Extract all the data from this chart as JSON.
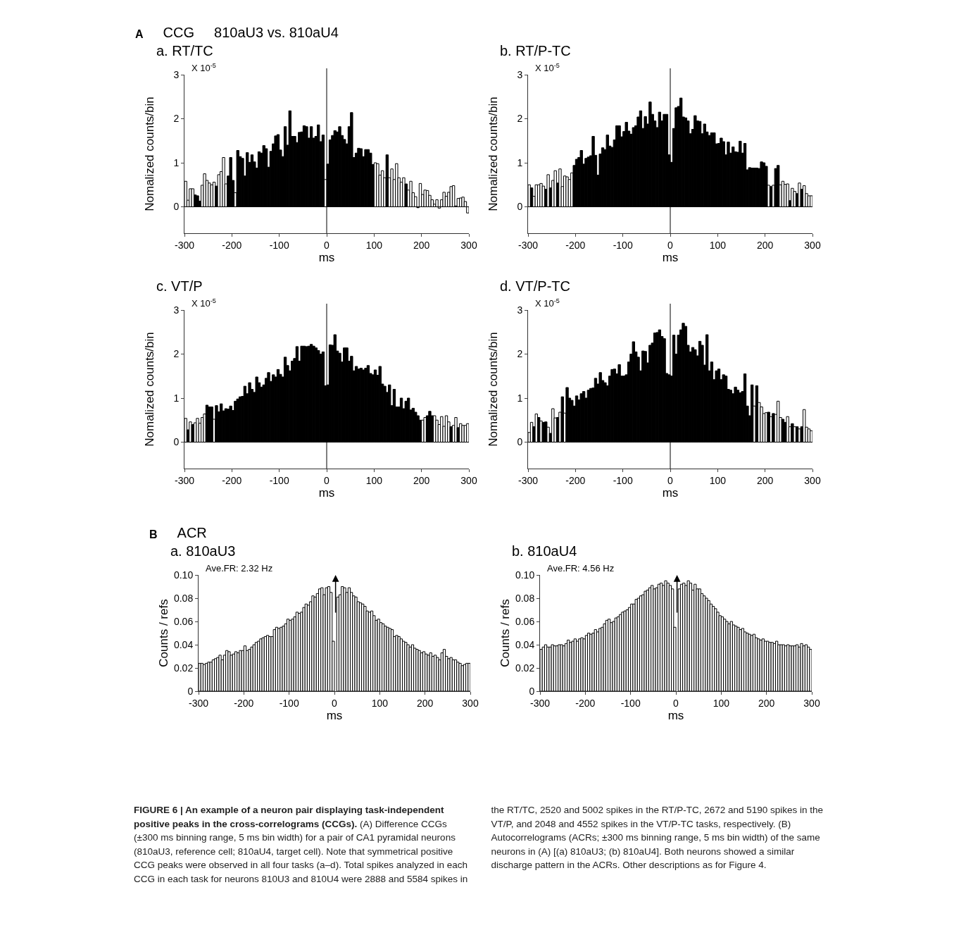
{
  "chart_data": [
    {
      "type": "histogram",
      "title": "a. RT/TC",
      "xlabel": "ms",
      "ylabel": "Nomalized counts/bin",
      "annotations": [
        "A",
        "CCG",
        "810aU3 vs. 810aU4",
        "X 10$^{-5}$"
      ],
      "bins": [
        -300,
        -295,
        -290,
        -285,
        -280,
        -275,
        -270,
        -265,
        -260,
        -255,
        -250,
        -245,
        -240,
        -235,
        -230,
        -225,
        -220,
        -215,
        -210,
        -205,
        -200,
        -195,
        -190,
        -185,
        -180,
        -175,
        -170,
        -165,
        -160,
        -155,
        -150,
        -145,
        -140,
        -135,
        -130,
        -125,
        -120,
        -115,
        -110,
        -105,
        -100,
        -95,
        -90,
        -85,
        -80,
        -75,
        -70,
        -65,
        -60,
        -55,
        -50,
        -45,
        -40,
        -35,
        -30,
        -25,
        -20,
        -15,
        -10,
        -5,
        0,
        5,
        10,
        15,
        20,
        25,
        30,
        35,
        40,
        45,
        50,
        55,
        60,
        65,
        70,
        75,
        80,
        85,
        90,
        95,
        100,
        105,
        110,
        115,
        120,
        125,
        130,
        135,
        140,
        145,
        150,
        155,
        160,
        165,
        170,
        175,
        180,
        185,
        190,
        195,
        200,
        205,
        210,
        215,
        220,
        225,
        230,
        235,
        240,
        245,
        250,
        255,
        260,
        265,
        270,
        275,
        280,
        285,
        290,
        295,
        300
      ],
      "values": [
        0.58,
        0.15,
        0.41,
        0.41,
        0.27,
        0.25,
        0.13,
        0.49,
        0.75,
        0.6,
        0.54,
        0.5,
        0.56,
        0.47,
        0.73,
        0.8,
        1.12,
        0.52,
        0.7,
        1.12,
        0.6,
        0.32,
        1.28,
        1.14,
        1.1,
        0.7,
        1.23,
        1.01,
        1.18,
        1.02,
        0.88,
        1.25,
        1.22,
        1.39,
        1.32,
        0.9,
        1.26,
        1.43,
        1.61,
        1.64,
        1.29,
        1.14,
        1.82,
        1.4,
        2.18,
        1.6,
        1.6,
        1.46,
        1.69,
        1.7,
        1.84,
        1.82,
        1.56,
        1.82,
        1.56,
        1.6,
        1.86,
        1.48,
        1.63,
        0.62,
        0.97,
        1.52,
        1.62,
        1.73,
        1.7,
        1.82,
        1.62,
        1.53,
        1.43,
        1.82,
        2.14,
        1.12,
        1.22,
        1.33,
        1.32,
        1.14,
        1.3,
        1.3,
        1.22,
        0.96,
        1.0,
        0.98,
        0.72,
        0.82,
        0.66,
        1.18,
        0.66,
        0.86,
        0.62,
        0.98,
        0.66,
        0.56,
        0.66,
        0.52,
        0.38,
        0.58,
        0.32,
        0.23,
        -0.02,
        0.53,
        0.28,
        0.38,
        0.37,
        0.26,
        0.16,
        0.06,
        0.16,
        -0.03,
        0.16,
        0.33,
        0.24,
        0.33,
        0.46,
        0.48,
        0.02,
        0.19,
        0.2,
        0.22,
        0.12,
        -0.14
      ],
      "colors": [
        "#ffffff",
        "#ffffff",
        "#ffffff",
        "#ffffff",
        "#000000",
        "#000000",
        "#000000",
        "#ffffff",
        "#ffffff",
        "#ffffff",
        "#ffffff",
        "#ffffff",
        "#ffffff",
        "#000000",
        "#ffffff",
        "#ffffff",
        "#ffffff",
        "#ffffff",
        "#000000",
        "#000000",
        "#000000",
        "#ffffff",
        "#000000",
        "#000000",
        "#000000",
        "#000000",
        "#000000",
        "#000000",
        "#000000",
        "#000000",
        "#000000",
        "#000000",
        "#000000",
        "#000000",
        "#000000",
        "#000000",
        "#000000",
        "#000000",
        "#000000",
        "#000000",
        "#000000",
        "#000000",
        "#000000",
        "#000000",
        "#000000",
        "#000000",
        "#000000",
        "#000000",
        "#000000",
        "#000000",
        "#000000",
        "#000000",
        "#000000",
        "#000000",
        "#000000",
        "#000000",
        "#000000",
        "#000000",
        "#000000",
        "#ffffff",
        "#000000",
        "#000000",
        "#000000",
        "#000000",
        "#000000",
        "#000000",
        "#000000",
        "#000000",
        "#000000",
        "#000000",
        "#000000",
        "#000000",
        "#000000",
        "#000000",
        "#000000",
        "#000000",
        "#000000",
        "#000000",
        "#000000",
        "#000000",
        "#ffffff",
        "#ffffff",
        "#ffffff",
        "#ffffff",
        "#ffffff",
        "#000000",
        "#ffffff",
        "#ffffff",
        "#ffffff",
        "#ffffff",
        "#ffffff",
        "#ffffff",
        "#ffffff",
        "#000000",
        "#ffffff",
        "#ffffff",
        "#ffffff",
        "#ffffff",
        "#000000",
        "#ffffff",
        "#ffffff",
        "#ffffff",
        "#ffffff",
        "#ffffff",
        "#ffffff",
        "#ffffff",
        "#ffffff",
        "#ffffff",
        "#ffffff",
        "#ffffff",
        "#ffffff",
        "#ffffff",
        "#ffffff",
        "#ffffff",
        "#ffffff",
        "#ffffff",
        "#ffffff",
        "#ffffff",
        "#ffffff",
        "#ffffff"
      ],
      "xlim": [
        -300,
        300
      ],
      "ylim": [
        -0.6,
        3
      ],
      "xticks": [
        -300,
        -200,
        -100,
        0,
        100,
        200,
        300
      ],
      "yticks": [
        0,
        1,
        2,
        3
      ],
      "ref_lines": [
        {
          "axis": "x",
          "value": 0
        }
      ]
    },
    {
      "type": "histogram",
      "title": "b. RT/P-TC",
      "xlabel": "ms",
      "ylabel": "Nomalized counts/bin",
      "annotations": [
        "X 10$^{-5}$"
      ],
      "bins": [
        -300,
        -295,
        -290,
        -285,
        -280,
        -275,
        -270,
        -265,
        -260,
        -255,
        -250,
        -245,
        -240,
        -235,
        -230,
        -225,
        -220,
        -215,
        -210,
        -205,
        -200,
        -195,
        -190,
        -185,
        -180,
        -175,
        -170,
        -165,
        -160,
        -155,
        -150,
        -145,
        -140,
        -135,
        -130,
        -125,
        -120,
        -115,
        -110,
        -105,
        -100,
        -95,
        -90,
        -85,
        -80,
        -75,
        -70,
        -65,
        -60,
        -55,
        -50,
        -45,
        -40,
        -35,
        -30,
        -25,
        -20,
        -15,
        -10,
        -5,
        0,
        5,
        10,
        15,
        20,
        25,
        30,
        35,
        40,
        45,
        50,
        55,
        60,
        65,
        70,
        75,
        80,
        85,
        90,
        95,
        100,
        105,
        110,
        115,
        120,
        125,
        130,
        135,
        140,
        145,
        150,
        155,
        160,
        165,
        170,
        175,
        180,
        185,
        190,
        195,
        200,
        205,
        210,
        215,
        220,
        225,
        230,
        235,
        240,
        245,
        250,
        255,
        260,
        265,
        270,
        275,
        280,
        285,
        290,
        295,
        300
      ],
      "values": [
        0.5,
        0.43,
        0.24,
        0.5,
        0.5,
        0.53,
        0.47,
        0.4,
        0.73,
        0.43,
        0.6,
        0.82,
        0.54,
        0.86,
        0.46,
        0.7,
        0.68,
        0.62,
        0.77,
        0.94,
        1.08,
        1.12,
        1.28,
        0.97,
        1.1,
        1.13,
        1.16,
        1.6,
        1.17,
        0.72,
        1.2,
        1.34,
        1.3,
        1.63,
        1.38,
        1.35,
        1.52,
        1.84,
        1.84,
        1.59,
        1.71,
        1.92,
        1.72,
        1.65,
        1.8,
        1.84,
        2.04,
        2.18,
        1.78,
        2.05,
        1.88,
        2.38,
        2.1,
        1.95,
        1.8,
        2.15,
        1.95,
        2.1,
        2.1,
        1.18,
        1.01,
        1.78,
        2.25,
        2.28,
        2.47,
        2.04,
        2.02,
        1.95,
        1.66,
        1.76,
        2.07,
        1.95,
        1.94,
        1.66,
        1.88,
        1.7,
        1.62,
        1.68,
        1.68,
        1.43,
        1.44,
        1.56,
        1.48,
        1.18,
        1.47,
        1.22,
        1.36,
        1.25,
        1.24,
        1.49,
        1.22,
        1.44,
        0.84,
        0.89,
        0.88,
        0.88,
        0.88,
        0.87,
        1.02,
        1.0,
        0.92,
        0.49,
        0.46,
        0.49,
        0.87,
        0.94,
        0.5,
        0.58,
        0.51,
        0.52,
        0.14,
        0.42,
        0.35,
        0.3,
        0.54,
        0.4,
        0.48,
        0.3,
        0.25,
        0.25
      ],
      "colors": [
        "#ffffff",
        "#000000",
        "#ffffff",
        "#ffffff",
        "#ffffff",
        "#ffffff",
        "#ffffff",
        "#000000",
        "#ffffff",
        "#000000",
        "#ffffff",
        "#ffffff",
        "#000000",
        "#ffffff",
        "#ffffff",
        "#ffffff",
        "#ffffff",
        "#ffffff",
        "#ffffff",
        "#000000",
        "#000000",
        "#000000",
        "#000000",
        "#000000",
        "#000000",
        "#000000",
        "#000000",
        "#000000",
        "#000000",
        "#000000",
        "#000000",
        "#000000",
        "#000000",
        "#000000",
        "#000000",
        "#000000",
        "#000000",
        "#000000",
        "#000000",
        "#000000",
        "#000000",
        "#000000",
        "#000000",
        "#000000",
        "#000000",
        "#000000",
        "#000000",
        "#000000",
        "#000000",
        "#000000",
        "#000000",
        "#000000",
        "#000000",
        "#000000",
        "#000000",
        "#000000",
        "#000000",
        "#000000",
        "#000000",
        "#000000",
        "#000000",
        "#000000",
        "#000000",
        "#000000",
        "#000000",
        "#000000",
        "#000000",
        "#000000",
        "#000000",
        "#000000",
        "#000000",
        "#000000",
        "#000000",
        "#000000",
        "#000000",
        "#000000",
        "#000000",
        "#000000",
        "#000000",
        "#000000",
        "#000000",
        "#000000",
        "#000000",
        "#000000",
        "#000000",
        "#000000",
        "#000000",
        "#000000",
        "#000000",
        "#000000",
        "#000000",
        "#000000",
        "#000000",
        "#000000",
        "#000000",
        "#000000",
        "#000000",
        "#000000",
        "#000000",
        "#000000",
        "#000000",
        "#ffffff",
        "#000000",
        "#ffffff",
        "#000000",
        "#000000",
        "#ffffff",
        "#ffffff",
        "#ffffff",
        "#ffffff",
        "#000000",
        "#ffffff",
        "#ffffff",
        "#000000",
        "#ffffff",
        "#000000",
        "#ffffff",
        "#ffffff",
        "#ffffff",
        "#ffffff"
      ],
      "xlim": [
        -300,
        300
      ],
      "ylim": [
        -0.6,
        3
      ],
      "xticks": [
        -300,
        -200,
        -100,
        0,
        100,
        200,
        300
      ],
      "yticks": [
        0,
        1,
        2,
        3
      ],
      "ref_lines": [
        {
          "axis": "x",
          "value": 0
        }
      ]
    },
    {
      "type": "histogram",
      "title": "c. VT/P",
      "xlabel": "ms",
      "ylabel": "Nomalized counts/bin",
      "annotations": [
        "X 10$^{-5}$"
      ],
      "bins": [
        -300,
        -295,
        -290,
        -285,
        -280,
        -275,
        -270,
        -265,
        -260,
        -255,
        -250,
        -245,
        -240,
        -235,
        -230,
        -225,
        -220,
        -215,
        -210,
        -205,
        -200,
        -195,
        -190,
        -185,
        -180,
        -175,
        -170,
        -165,
        -160,
        -155,
        -150,
        -145,
        -140,
        -135,
        -130,
        -125,
        -120,
        -115,
        -110,
        -105,
        -100,
        -95,
        -90,
        -85,
        -80,
        -75,
        -70,
        -65,
        -60,
        -55,
        -50,
        -45,
        -40,
        -35,
        -30,
        -25,
        -20,
        -15,
        -10,
        -5,
        0,
        5,
        10,
        15,
        20,
        25,
        30,
        35,
        40,
        45,
        50,
        55,
        60,
        65,
        70,
        75,
        80,
        85,
        90,
        95,
        100,
        105,
        110,
        115,
        120,
        125,
        130,
        135,
        140,
        145,
        150,
        155,
        160,
        165,
        170,
        175,
        180,
        185,
        190,
        195,
        200,
        205,
        210,
        215,
        220,
        225,
        230,
        235,
        240,
        245,
        250,
        255,
        260,
        265,
        270,
        275,
        280,
        285,
        290,
        295,
        300
      ],
      "values": [
        0.54,
        0.28,
        0.46,
        0.4,
        0.44,
        0.54,
        0.43,
        0.56,
        0.64,
        0.84,
        0.8,
        0.8,
        0.52,
        0.83,
        0.69,
        0.87,
        0.71,
        0.76,
        0.75,
        0.82,
        0.72,
        0.93,
        0.98,
        1.03,
        1.04,
        1.27,
        1.1,
        1.35,
        1.2,
        1.13,
        1.48,
        1.35,
        1.25,
        1.3,
        1.45,
        1.58,
        1.38,
        1.53,
        1.48,
        1.65,
        1.54,
        1.48,
        1.93,
        1.74,
        1.62,
        1.84,
        1.9,
        2.17,
        1.84,
        2.18,
        2.18,
        2.17,
        2.18,
        2.22,
        2.18,
        2.14,
        2.08,
        2.0,
        2.05,
        1.28,
        1.3,
        2.21,
        2.2,
        2.44,
        2.07,
        2.02,
        1.82,
        2.14,
        2.14,
        1.84,
        1.95,
        1.62,
        1.72,
        1.66,
        1.68,
        1.64,
        1.68,
        1.74,
        1.56,
        1.53,
        1.64,
        1.52,
        1.72,
        1.32,
        1.27,
        1.13,
        1.3,
        0.83,
        1.2,
        0.8,
        0.8,
        1.0,
        0.76,
        0.93,
        1.0,
        0.73,
        0.77,
        0.68,
        0.6,
        0.5,
        0.5,
        0.56,
        0.6,
        0.7,
        0.6,
        0.6,
        0.5,
        0.4,
        0.58,
        0.36,
        0.6,
        0.46,
        0.35,
        0.38,
        0.56,
        0.33,
        0.42,
        0.38,
        0.38,
        0.42
      ],
      "colors": [
        "#ffffff",
        "#000000",
        "#ffffff",
        "#000000",
        "#ffffff",
        "#ffffff",
        "#ffffff",
        "#ffffff",
        "#ffffff",
        "#000000",
        "#000000",
        "#000000",
        "#ffffff",
        "#000000",
        "#000000",
        "#000000",
        "#000000",
        "#000000",
        "#000000",
        "#000000",
        "#000000",
        "#000000",
        "#000000",
        "#000000",
        "#000000",
        "#000000",
        "#000000",
        "#000000",
        "#000000",
        "#000000",
        "#000000",
        "#000000",
        "#000000",
        "#000000",
        "#000000",
        "#000000",
        "#000000",
        "#000000",
        "#000000",
        "#000000",
        "#000000",
        "#000000",
        "#000000",
        "#000000",
        "#000000",
        "#000000",
        "#000000",
        "#000000",
        "#000000",
        "#000000",
        "#000000",
        "#000000",
        "#000000",
        "#000000",
        "#000000",
        "#000000",
        "#000000",
        "#000000",
        "#000000",
        "#000000",
        "#000000",
        "#000000",
        "#000000",
        "#000000",
        "#000000",
        "#000000",
        "#000000",
        "#000000",
        "#000000",
        "#000000",
        "#000000",
        "#000000",
        "#000000",
        "#000000",
        "#000000",
        "#000000",
        "#000000",
        "#000000",
        "#000000",
        "#000000",
        "#000000",
        "#000000",
        "#000000",
        "#000000",
        "#000000",
        "#000000",
        "#000000",
        "#000000",
        "#000000",
        "#000000",
        "#000000",
        "#000000",
        "#000000",
        "#000000",
        "#000000",
        "#000000",
        "#000000",
        "#000000",
        "#000000",
        "#000000",
        "#ffffff",
        "#ffffff",
        "#000000",
        "#000000",
        "#000000",
        "#ffffff",
        "#ffffff",
        "#ffffff",
        "#ffffff",
        "#ffffff",
        "#ffffff",
        "#ffffff",
        "#000000",
        "#ffffff",
        "#ffffff",
        "#000000",
        "#ffffff",
        "#ffffff",
        "#ffffff",
        "#ffffff"
      ],
      "xlim": [
        -300,
        300
      ],
      "ylim": [
        -0.6,
        3
      ],
      "xticks": [
        -300,
        -200,
        -100,
        0,
        100,
        200,
        300
      ],
      "yticks": [
        0,
        1,
        2,
        3
      ],
      "ref_lines": [
        {
          "axis": "x",
          "value": 0
        }
      ]
    },
    {
      "type": "histogram",
      "title": "d. VT/P-TC",
      "xlabel": "ms",
      "ylabel": "Nomalized counts/bin",
      "annotations": [
        "X 10$^{-5}$"
      ],
      "bins": [
        -300,
        -295,
        -290,
        -285,
        -280,
        -275,
        -270,
        -265,
        -260,
        -255,
        -250,
        -245,
        -240,
        -235,
        -230,
        -225,
        -220,
        -215,
        -210,
        -205,
        -200,
        -195,
        -190,
        -185,
        -180,
        -175,
        -170,
        -165,
        -160,
        -155,
        -150,
        -145,
        -140,
        -135,
        -130,
        -125,
        -120,
        -115,
        -110,
        -105,
        -100,
        -95,
        -90,
        -85,
        -80,
        -75,
        -70,
        -65,
        -60,
        -55,
        -50,
        -45,
        -40,
        -35,
        -30,
        -25,
        -20,
        -15,
        -10,
        -5,
        0,
        5,
        10,
        15,
        20,
        25,
        30,
        35,
        40,
        45,
        50,
        55,
        60,
        65,
        70,
        75,
        80,
        85,
        90,
        95,
        100,
        105,
        110,
        115,
        120,
        125,
        130,
        135,
        140,
        145,
        150,
        155,
        160,
        165,
        170,
        175,
        180,
        185,
        190,
        195,
        200,
        205,
        210,
        215,
        220,
        225,
        230,
        235,
        240,
        245,
        250,
        255,
        260,
        265,
        270,
        275,
        280,
        285,
        290,
        295,
        300
      ],
      "values": [
        0.22,
        0.45,
        0.35,
        0.64,
        0.56,
        0.48,
        0.45,
        0.46,
        0.34,
        0.2,
        0.76,
        0.55,
        0.56,
        0.68,
        1.03,
        0.66,
        1.24,
        1.0,
        0.95,
        0.82,
        1.05,
        0.96,
        1.1,
        1.15,
        1.0,
        1.18,
        1.22,
        1.23,
        1.45,
        1.32,
        1.58,
        1.4,
        1.35,
        1.28,
        1.5,
        1.65,
        1.66,
        1.55,
        1.76,
        1.5,
        1.5,
        1.53,
        1.82,
        2.0,
        2.28,
        2.05,
        1.93,
        1.62,
        2.07,
        2.06,
        1.8,
        2.2,
        2.25,
        2.48,
        2.49,
        2.55,
        2.4,
        2.35,
        1.56,
        1.53,
        1.5,
        2.43,
        2.0,
        2.43,
        2.55,
        2.7,
        2.63,
        2.2,
        2.05,
        2.15,
        2.1,
        1.96,
        2.29,
        2.2,
        1.75,
        2.44,
        1.62,
        1.82,
        1.42,
        1.62,
        1.66,
        1.42,
        1.53,
        1.5,
        1.2,
        1.18,
        1.1,
        1.25,
        1.18,
        1.12,
        1.15,
        1.55,
        0.82,
        0.6,
        1.3,
        0.82,
        1.28,
        0.9,
        0.8,
        0.65,
        0.67,
        0.68,
        0.58,
        0.65,
        0.63,
        0.93,
        0.56,
        0.52,
        0.45,
        0.58,
        0.35,
        0.42,
        0.35,
        0.35,
        0.3,
        0.35,
        0.74,
        0.34,
        0.3,
        0.26
      ],
      "colors": [
        "#ffffff",
        "#ffffff",
        "#000000",
        "#ffffff",
        "#000000",
        "#ffffff",
        "#000000",
        "#000000",
        "#ffffff",
        "#000000",
        "#ffffff",
        "#ffffff",
        "#000000",
        "#ffffff",
        "#000000",
        "#ffffff",
        "#000000",
        "#000000",
        "#000000",
        "#000000",
        "#000000",
        "#000000",
        "#000000",
        "#000000",
        "#000000",
        "#000000",
        "#000000",
        "#000000",
        "#000000",
        "#000000",
        "#000000",
        "#000000",
        "#000000",
        "#000000",
        "#000000",
        "#000000",
        "#000000",
        "#000000",
        "#000000",
        "#000000",
        "#000000",
        "#000000",
        "#000000",
        "#000000",
        "#000000",
        "#000000",
        "#000000",
        "#000000",
        "#000000",
        "#000000",
        "#000000",
        "#000000",
        "#000000",
        "#000000",
        "#000000",
        "#000000",
        "#000000",
        "#000000",
        "#000000",
        "#000000",
        "#000000",
        "#000000",
        "#000000",
        "#000000",
        "#000000",
        "#000000",
        "#000000",
        "#000000",
        "#000000",
        "#000000",
        "#000000",
        "#000000",
        "#000000",
        "#000000",
        "#000000",
        "#000000",
        "#000000",
        "#000000",
        "#000000",
        "#000000",
        "#000000",
        "#000000",
        "#000000",
        "#000000",
        "#000000",
        "#000000",
        "#000000",
        "#000000",
        "#000000",
        "#000000",
        "#000000",
        "#000000",
        "#000000",
        "#000000",
        "#000000",
        "#ffffff",
        "#000000",
        "#ffffff",
        "#ffffff",
        "#ffffff",
        "#ffffff",
        "#000000",
        "#ffffff",
        "#000000",
        "#ffffff",
        "#ffffff",
        "#ffffff",
        "#000000",
        "#000000",
        "#ffffff",
        "#ffffff",
        "#000000",
        "#ffffff",
        "#000000",
        "#ffffff",
        "#000000",
        "#ffffff",
        "#ffffff",
        "#ffffff",
        "#ffffff"
      ],
      "xlim": [
        -300,
        300
      ],
      "ylim": [
        -0.6,
        3
      ],
      "xticks": [
        -300,
        -200,
        -100,
        0,
        100,
        200,
        300
      ],
      "yticks": [
        0,
        1,
        2,
        3
      ],
      "ref_lines": [
        {
          "axis": "x",
          "value": 0
        }
      ]
    },
    {
      "type": "histogram",
      "title": "a. 810aU3",
      "xlabel": "ms",
      "ylabel": "Counts / refs",
      "annotations": [
        "B",
        "ACR",
        "Ave.FR: 2.32 Hz"
      ],
      "bins": [
        -300,
        -295,
        -290,
        -285,
        -280,
        -275,
        -270,
        -265,
        -260,
        -255,
        -250,
        -245,
        -240,
        -235,
        -230,
        -225,
        -220,
        -215,
        -210,
        -205,
        -200,
        -195,
        -190,
        -185,
        -180,
        -175,
        -170,
        -165,
        -160,
        -155,
        -150,
        -145,
        -140,
        -135,
        -130,
        -125,
        -120,
        -115,
        -110,
        -105,
        -100,
        -95,
        -90,
        -85,
        -80,
        -75,
        -70,
        -65,
        -60,
        -55,
        -50,
        -45,
        -40,
        -35,
        -30,
        -25,
        -20,
        -15,
        -10,
        -5,
        0,
        5,
        10,
        15,
        20,
        25,
        30,
        35,
        40,
        45,
        50,
        55,
        60,
        65,
        70,
        75,
        80,
        85,
        90,
        95,
        100,
        105,
        110,
        115,
        120,
        125,
        130,
        135,
        140,
        145,
        150,
        155,
        160,
        165,
        170,
        175,
        180,
        185,
        190,
        195,
        200,
        205,
        210,
        215,
        220,
        225,
        230,
        235,
        240,
        245,
        250,
        255,
        260,
        265,
        270,
        275,
        280,
        285,
        290,
        295,
        300
      ],
      "values": [
        0.024,
        0.024,
        0.023,
        0.024,
        0.025,
        0.025,
        0.027,
        0.028,
        0.029,
        0.031,
        0.027,
        0.031,
        0.035,
        0.034,
        0.031,
        0.032,
        0.034,
        0.033,
        0.035,
        0.035,
        0.039,
        0.035,
        0.036,
        0.038,
        0.04,
        0.042,
        0.043,
        0.045,
        0.046,
        0.047,
        0.048,
        0.047,
        0.047,
        0.053,
        0.055,
        0.054,
        0.055,
        0.056,
        0.058,
        0.062,
        0.061,
        0.062,
        0.064,
        0.068,
        0.067,
        0.068,
        0.072,
        0.075,
        0.074,
        0.077,
        0.082,
        0.081,
        0.084,
        0.088,
        0.089,
        0.083,
        0.089,
        0.09,
        0.085,
        0.043,
        null,
        0.081,
        0.083,
        0.09,
        0.089,
        0.085,
        0.089,
        0.085,
        0.082,
        0.081,
        0.077,
        0.076,
        0.075,
        0.073,
        0.069,
        0.068,
        0.069,
        0.065,
        0.061,
        0.062,
        0.059,
        0.058,
        0.056,
        0.055,
        0.054,
        0.053,
        0.047,
        0.048,
        0.047,
        0.045,
        0.043,
        0.042,
        0.04,
        0.038,
        0.04,
        0.037,
        0.036,
        0.035,
        0.033,
        0.034,
        0.032,
        0.031,
        0.033,
        0.03,
        0.031,
        0.029,
        0.027,
        0.033,
        0.036,
        0.03,
        0.028,
        0.029,
        0.027,
        0.027,
        0.025,
        0.024,
        0.022,
        0.023,
        0.024,
        0.024
      ],
      "color": "#ffffff",
      "xlim": [
        -300,
        300
      ],
      "ylim": [
        0,
        0.1
      ],
      "xticks": [
        -300,
        -200,
        -100,
        0,
        100,
        200,
        300
      ],
      "yticks": [
        0,
        0.02,
        0.04,
        0.06,
        0.08,
        {
          "value": 0.1,
          "label": "0.10"
        }
      ]
    },
    {
      "type": "histogram",
      "title": "b. 810aU4",
      "xlabel": "ms",
      "ylabel": "Counts / refs",
      "annotations": [
        "Ave.FR: 4.56 Hz"
      ],
      "bins": [
        -300,
        -295,
        -290,
        -285,
        -280,
        -275,
        -270,
        -265,
        -260,
        -255,
        -250,
        -245,
        -240,
        -235,
        -230,
        -225,
        -220,
        -215,
        -210,
        -205,
        -200,
        -195,
        -190,
        -185,
        -180,
        -175,
        -170,
        -165,
        -160,
        -155,
        -150,
        -145,
        -140,
        -135,
        -130,
        -125,
        -120,
        -115,
        -110,
        -105,
        -100,
        -95,
        -90,
        -85,
        -80,
        -75,
        -70,
        -65,
        -60,
        -55,
        -50,
        -45,
        -40,
        -35,
        -30,
        -25,
        -20,
        -15,
        -10,
        -5,
        0,
        5,
        10,
        15,
        20,
        25,
        30,
        35,
        40,
        45,
        50,
        55,
        60,
        65,
        70,
        75,
        80,
        85,
        90,
        95,
        100,
        105,
        110,
        115,
        120,
        125,
        130,
        135,
        140,
        145,
        150,
        155,
        160,
        165,
        170,
        175,
        180,
        185,
        190,
        195,
        200,
        205,
        210,
        215,
        220,
        225,
        230,
        235,
        240,
        245,
        250,
        255,
        260,
        265,
        270,
        275,
        280,
        285,
        290,
        295,
        300
      ],
      "values": [
        0.036,
        0.038,
        0.04,
        0.038,
        0.038,
        0.04,
        0.039,
        0.039,
        0.04,
        0.04,
        0.039,
        0.041,
        0.044,
        0.042,
        0.043,
        0.045,
        0.043,
        0.045,
        0.046,
        0.045,
        0.048,
        0.05,
        0.049,
        0.05,
        0.053,
        0.051,
        0.054,
        0.055,
        0.058,
        0.061,
        0.062,
        0.059,
        0.06,
        0.063,
        0.064,
        0.066,
        0.068,
        0.069,
        0.07,
        0.072,
        0.075,
        0.075,
        0.079,
        0.08,
        0.082,
        0.083,
        0.086,
        0.087,
        0.089,
        0.091,
        0.088,
        0.089,
        0.092,
        0.093,
        0.091,
        0.095,
        0.093,
        0.091,
        0.088,
        0.055,
        null,
        0.088,
        0.092,
        0.093,
        0.091,
        0.095,
        0.093,
        0.087,
        0.092,
        0.088,
        0.088,
        0.084,
        0.082,
        0.08,
        0.078,
        0.075,
        0.073,
        0.071,
        0.068,
        0.065,
        0.064,
        0.062,
        0.06,
        0.058,
        0.06,
        0.057,
        0.056,
        0.055,
        0.053,
        0.054,
        0.051,
        0.05,
        0.049,
        0.048,
        0.049,
        0.046,
        0.045,
        0.044,
        0.045,
        0.043,
        0.043,
        0.042,
        0.042,
        0.041,
        0.043,
        0.04,
        0.04,
        0.04,
        0.039,
        0.04,
        0.039,
        0.039,
        0.039,
        0.04,
        0.038,
        0.041,
        0.039,
        0.04,
        0.038,
        0.036
      ],
      "color": "#ffffff",
      "xlim": [
        -300,
        300
      ],
      "ylim": [
        0,
        0.1
      ],
      "xticks": [
        -300,
        -200,
        -100,
        0,
        100,
        200,
        300
      ],
      "yticks": [
        0,
        0.02,
        0.04,
        0.06,
        0.08,
        {
          "value": 0.1,
          "label": "0.10"
        }
      ]
    },
    {
      "type": "other",
      "annotations": [
        "FIGURE 6 | An example of a neuron pair displaying task-independent positive peaks in the cross-correlograms (CCGs).",
        "(A) Difference CCGs (±300 ms binning range, 5 ms bin width) for a pair of CA1 pyramidal neurons (810aU3, reference cell; 810aU4, target cell). Note that symmetrical positive CCG peaks were observed in all four tasks (a–d). Total spikes analyzed in each CCG in each task for neurons 810U3 and 810U4 were 2888 and 5584 spikes in the RT/TC, 2520 and 5002 spikes in the RT/P-TC, 2672 and 5190 spikes in the VT/P, and 2048 and 4552 spikes in the VT/P-TC tasks, respectively. (B) Autocorrelograms (ACRs; ±300 ms binning range, 5 ms bin width) of the same neurons in (A) [(a) 810aU3; (b) 810aU4]. Both neurons showed a similar discharge pattern in the ACRs. Other descriptions as for Figure 4."
      ]
    }
  ]
}
